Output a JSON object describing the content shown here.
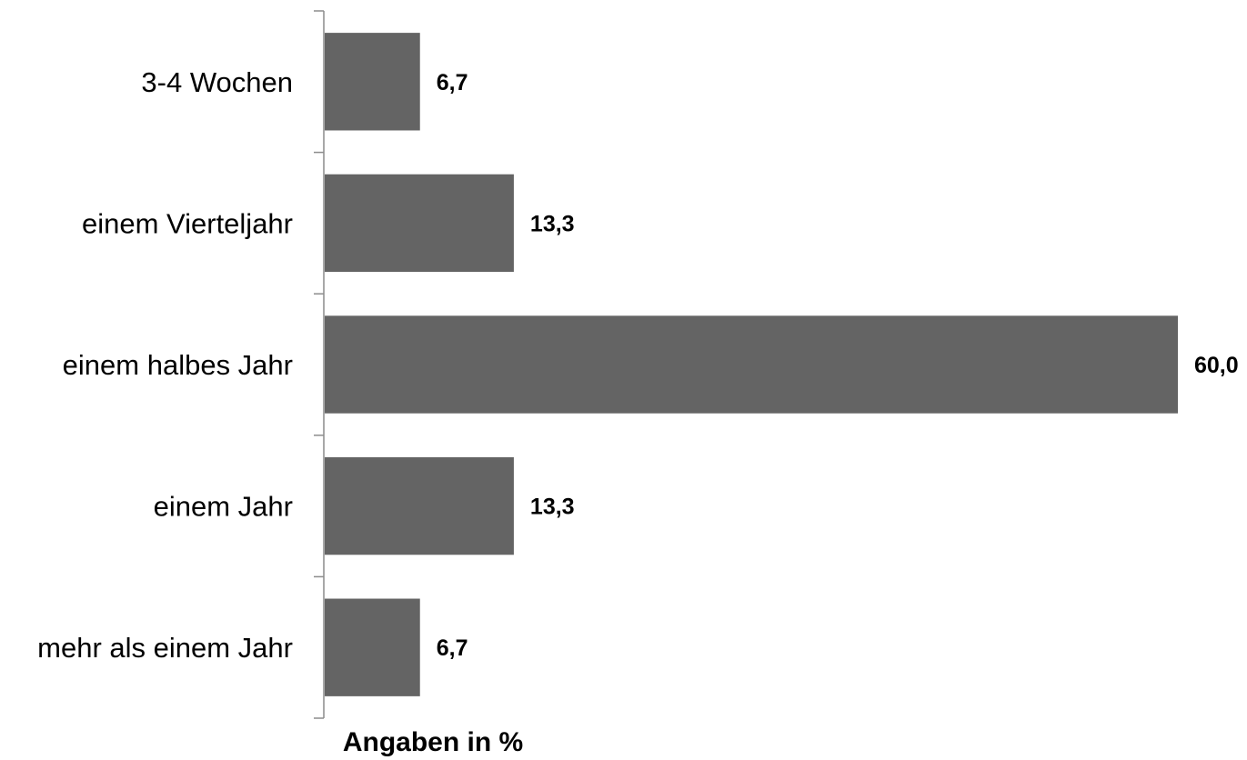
{
  "chart_data": {
    "type": "bar",
    "orientation": "horizontal",
    "categories": [
      "3-4 Wochen",
      "einem Vierteljahr",
      "einem halbes Jahr",
      "einem Jahr",
      "mehr als einem Jahr"
    ],
    "values": [
      6.7,
      13.3,
      60.0,
      13.3,
      6.7
    ],
    "value_labels": [
      "6,7",
      "13,3",
      "60,0",
      "13,3",
      "6,7"
    ],
    "xlabel": "Angaben in %",
    "xlim": [
      0,
      60
    ],
    "grid": false,
    "bar_color": "#646464",
    "axis_color": "#8c8c8c"
  }
}
